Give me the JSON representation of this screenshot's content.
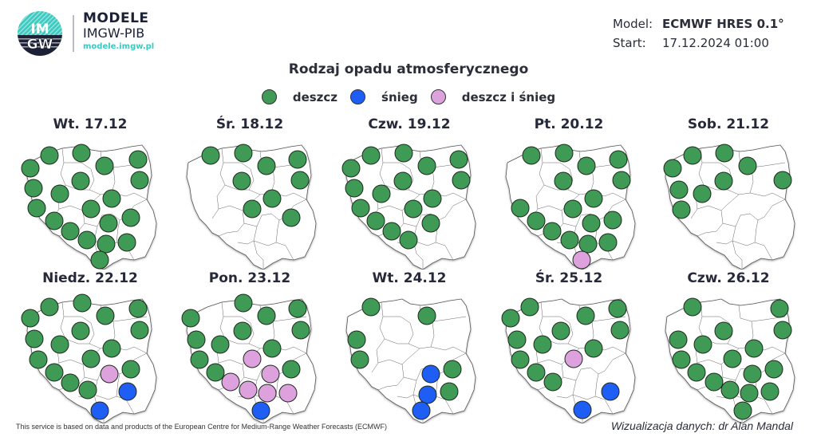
{
  "header": {
    "logo_text_top": "IM",
    "logo_text_bottom": "GW",
    "brand_title": "MODELE",
    "brand_subtitle": "IMGW-PIB",
    "brand_url": "modele.imgw.pl",
    "model_label": "Model:",
    "model_value": "ECMWF HRES 0.1°",
    "start_label": "Start:",
    "start_value": "17.12.2024 01:00"
  },
  "title": "Rodzaj opadu atmosferycznego",
  "legend": [
    {
      "label": "deszcz",
      "color": "#3e9a55"
    },
    {
      "label": "śnieg",
      "color": "#1f5ef5"
    },
    {
      "label": "deszcz i śnieg",
      "color": "#dda2dd"
    }
  ],
  "colors": {
    "rain": "#3e9a55",
    "snow": "#1f5ef5",
    "mixed": "#dda2dd"
  },
  "panels": [
    {
      "day": "Wt. 17.12",
      "dots": [
        [
          "r",
          20,
          65
        ],
        [
          "r",
          44,
          49
        ],
        [
          "r",
          84,
          46
        ],
        [
          "r",
          155,
          54
        ],
        [
          "r",
          113,
          62
        ],
        [
          "r",
          24,
          90
        ],
        [
          "r",
          157,
          80
        ],
        [
          "r",
          83,
          81
        ],
        [
          "r",
          57,
          97
        ],
        [
          "r",
          122,
          103
        ],
        [
          "r",
          28,
          115
        ],
        [
          "r",
          96,
          116
        ],
        [
          "r",
          50,
          131
        ],
        [
          "r",
          146,
          127
        ],
        [
          "r",
          118,
          134
        ],
        [
          "r",
          70,
          144
        ],
        [
          "r",
          91,
          155
        ],
        [
          "r",
          115,
          160
        ],
        [
          "r",
          141,
          158
        ],
        [
          "r",
          107,
          180
        ]
      ]
    },
    {
      "day": "Śr. 18.12",
      "dots": [
        [
          "r",
          46,
          49
        ],
        [
          "r",
          87,
          46
        ],
        [
          "r",
          155,
          54
        ],
        [
          "r",
          116,
          62
        ],
        [
          "r",
          158,
          80
        ],
        [
          "r",
          85,
          81
        ],
        [
          "r",
          123,
          103
        ],
        [
          "r",
          98,
          116
        ],
        [
          "r",
          147,
          127
        ]
      ]
    },
    {
      "day": "Czw. 19.12",
      "dots": [
        [
          "r",
          22,
          65
        ],
        [
          "r",
          47,
          49
        ],
        [
          "r",
          88,
          46
        ],
        [
          "r",
          157,
          54
        ],
        [
          "r",
          117,
          62
        ],
        [
          "r",
          26,
          90
        ],
        [
          "r",
          160,
          80
        ],
        [
          "r",
          87,
          81
        ],
        [
          "r",
          60,
          97
        ],
        [
          "r",
          124,
          103
        ],
        [
          "r",
          34,
          115
        ],
        [
          "r",
          100,
          116
        ],
        [
          "r",
          53,
          131
        ],
        [
          "r",
          122,
          134
        ],
        [
          "r",
          73,
          144
        ],
        [
          "r",
          94,
          155
        ]
      ]
    },
    {
      "day": "Pt. 20.12",
      "dots": [
        [
          "r",
          48,
          49
        ],
        [
          "r",
          89,
          46
        ],
        [
          "r",
          157,
          54
        ],
        [
          "r",
          117,
          62
        ],
        [
          "r",
          161,
          80
        ],
        [
          "r",
          88,
          81
        ],
        [
          "r",
          126,
          103
        ],
        [
          "r",
          34,
          115
        ],
        [
          "r",
          100,
          116
        ],
        [
          "r",
          54,
          131
        ],
        [
          "r",
          123,
          134
        ],
        [
          "r",
          150,
          130
        ],
        [
          "r",
          74,
          144
        ],
        [
          "r",
          96,
          155
        ],
        [
          "r",
          119,
          160
        ],
        [
          "r",
          144,
          158
        ],
        [
          "m",
          111,
          180
        ]
      ]
    },
    {
      "day": "Sob. 21.12",
      "dots": [
        [
          "r",
          25,
          65
        ],
        [
          "r",
          50,
          49
        ],
        [
          "r",
          90,
          46
        ],
        [
          "r",
          119,
          62
        ],
        [
          "r",
          163,
          80
        ],
        [
          "r",
          89,
          81
        ],
        [
          "r",
          33,
          92
        ],
        [
          "r",
          62,
          97
        ],
        [
          "r",
          36,
          117
        ]
      ]
    },
    {
      "day": "Niedz. 22.12",
      "dots": [
        [
          "r",
          20,
          60
        ],
        [
          "r",
          44,
          46
        ],
        [
          "r",
          85,
          41
        ],
        [
          "r",
          155,
          48
        ],
        [
          "r",
          114,
          57
        ],
        [
          "r",
          157,
          75
        ],
        [
          "r",
          83,
          76
        ],
        [
          "r",
          25,
          86
        ],
        [
          "r",
          57,
          93
        ],
        [
          "r",
          122,
          98
        ],
        [
          "r",
          30,
          112
        ],
        [
          "r",
          96,
          111
        ],
        [
          "r",
          50,
          128
        ],
        [
          "r",
          146,
          124
        ],
        [
          "m",
          119,
          130
        ],
        [
          "r",
          70,
          141
        ],
        [
          "r",
          92,
          150
        ],
        [
          "s",
          142,
          152
        ],
        [
          "s",
          107,
          176
        ]
      ]
    },
    {
      "day": "Pon. 23.12",
      "dots": [
        [
          "r",
          21,
          60
        ],
        [
          "r",
          87,
          41
        ],
        [
          "r",
          155,
          48
        ],
        [
          "r",
          116,
          57
        ],
        [
          "r",
          159,
          75
        ],
        [
          "r",
          86,
          76
        ],
        [
          "r",
          28,
          87
        ],
        [
          "r",
          58,
          93
        ],
        [
          "r",
          123,
          98
        ],
        [
          "r",
          32,
          112
        ],
        [
          "m",
          98,
          111
        ],
        [
          "r",
          52,
          128
        ],
        [
          "m",
          121,
          130
        ],
        [
          "r",
          147,
          124
        ],
        [
          "m",
          71,
          140
        ],
        [
          "m",
          93,
          150
        ],
        [
          "m",
          117,
          154
        ],
        [
          "m",
          143,
          154
        ],
        [
          "s",
          109,
          176
        ]
      ]
    },
    {
      "day": "Wt. 24.12",
      "dots": [
        [
          "r",
          47,
          46
        ],
        [
          "r",
          117,
          57
        ],
        [
          "r",
          29,
          87
        ],
        [
          "r",
          33,
          112
        ],
        [
          "s",
          122,
          130
        ],
        [
          "r",
          149,
          124
        ],
        [
          "s",
          118,
          156
        ],
        [
          "r",
          145,
          152
        ],
        [
          "s",
          110,
          176
        ]
      ]
    },
    {
      "day": "Śr. 25.12",
      "dots": [
        [
          "r",
          22,
          60
        ],
        [
          "r",
          46,
          46
        ],
        [
          "r",
          156,
          48
        ],
        [
          "r",
          116,
          57
        ],
        [
          "r",
          159,
          75
        ],
        [
          "r",
          85,
          76
        ],
        [
          "r",
          30,
          87
        ],
        [
          "r",
          62,
          93
        ],
        [
          "r",
          126,
          98
        ],
        [
          "r",
          34,
          112
        ],
        [
          "m",
          101,
          111
        ],
        [
          "r",
          54,
          128
        ],
        [
          "r",
          75,
          140
        ],
        [
          "s",
          147,
          152
        ],
        [
          "s",
          112,
          175
        ]
      ]
    },
    {
      "day": "Czw. 26.12",
      "dots": [
        [
          "r",
          50,
          46
        ],
        [
          "r",
          159,
          48
        ],
        [
          "r",
          163,
          75
        ],
        [
          "r",
          89,
          76
        ],
        [
          "r",
          32,
          87
        ],
        [
          "r",
          63,
          93
        ],
        [
          "r",
          127,
          98
        ],
        [
          "r",
          36,
          112
        ],
        [
          "r",
          100,
          111
        ],
        [
          "r",
          152,
          124
        ],
        [
          "r",
          55,
          128
        ],
        [
          "r",
          125,
          130
        ],
        [
          "r",
          77,
          140
        ],
        [
          "r",
          97,
          150
        ],
        [
          "r",
          121,
          154
        ],
        [
          "r",
          147,
          152
        ],
        [
          "r",
          113,
          176
        ]
      ]
    }
  ],
  "footer": {
    "attribution": "This service is based on data and products of the European Centre for Medium-Range Weather Forecasts (ECMWF)",
    "credit": "Wizualizacja danych: dr Alan Mandal"
  }
}
